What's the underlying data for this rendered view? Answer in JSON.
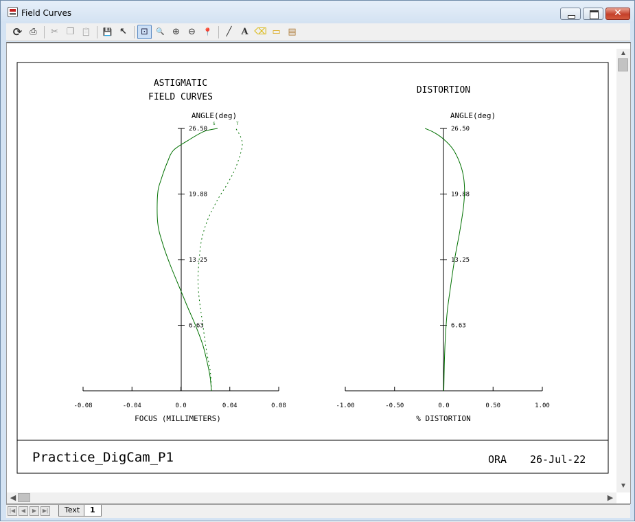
{
  "window": {
    "title": "Field Curves"
  },
  "toolbar": {
    "buttons": [
      {
        "name": "refresh-icon",
        "glyph": "⟳"
      },
      {
        "name": "print-icon",
        "glyph": "⎙"
      },
      {
        "name": "cut-icon",
        "glyph": "✂"
      },
      {
        "name": "copy-icon",
        "glyph": "❐"
      },
      {
        "name": "paste-icon",
        "glyph": "📋"
      },
      {
        "name": "save-icon",
        "glyph": "💾"
      },
      {
        "name": "pointer-icon",
        "glyph": "↖"
      },
      {
        "name": "zoom-window-icon",
        "glyph": "⊡"
      },
      {
        "name": "zoom-1to1-icon",
        "glyph": "🔍"
      },
      {
        "name": "zoom-in-icon",
        "glyph": "⊕"
      },
      {
        "name": "zoom-out-icon",
        "glyph": "⊖"
      },
      {
        "name": "pin-icon",
        "glyph": "📍"
      },
      {
        "name": "line-tool-icon",
        "glyph": "╱"
      },
      {
        "name": "text-tool-icon",
        "glyph": "A"
      },
      {
        "name": "eraser-icon",
        "glyph": "⌫"
      },
      {
        "name": "ruler-icon",
        "glyph": "▭"
      },
      {
        "name": "properties-icon",
        "glyph": "▤"
      }
    ]
  },
  "astig": {
    "title_line1": "ASTIGMATIC",
    "title_line2": "FIELD CURVES",
    "angle_label": "ANGLE(deg)",
    "xlabel": "FOCUS (MILLIMETERS)",
    "s_marker": "S",
    "t_marker": "T"
  },
  "dist": {
    "title": "DISTORTION",
    "angle_label": "ANGLE(deg)",
    "xlabel": "% DISTORTION"
  },
  "footer": {
    "name": "Practice_DigCam_P1",
    "company": "ORA",
    "date": "26-Jul-22"
  },
  "tabs": [
    {
      "label": "Text",
      "active": false
    },
    {
      "label": "1",
      "active": true
    }
  ],
  "chart_data": [
    {
      "type": "line",
      "title": "ASTIGMATIC FIELD CURVES",
      "xlabel": "FOCUS (MILLIMETERS)",
      "ylabel": "ANGLE(deg)",
      "xlim": [
        -0.08,
        0.08
      ],
      "ylim": [
        0,
        26.5
      ],
      "x_ticks": [
        "-0.08",
        "-0.04",
        "0.0",
        "0.04",
        "0.08"
      ],
      "y_ticks": [
        "6.63",
        "13.25",
        "19.88",
        "26.50"
      ],
      "series": [
        {
          "name": "S",
          "style": "solid",
          "color": "#007000",
          "points": [
            [
              0.025,
              0
            ],
            [
              0.024,
              1.3
            ],
            [
              0.022,
              2.6
            ],
            [
              0.018,
              4.6
            ],
            [
              0.012,
              6.6
            ],
            [
              0.005,
              8.6
            ],
            [
              -0.002,
              10.7
            ],
            [
              -0.009,
              12.8
            ],
            [
              -0.015,
              14.9
            ],
            [
              -0.019,
              17.0
            ],
            [
              -0.019,
              19.9
            ],
            [
              -0.016,
              21.4
            ],
            [
              -0.011,
              23.1
            ],
            [
              -0.006,
              24.3
            ],
            [
              0.006,
              25.3
            ],
            [
              0.019,
              26.2
            ],
            [
              0.03,
              26.5
            ]
          ]
        },
        {
          "name": "T",
          "style": "dotted",
          "color": "#007000",
          "points": [
            [
              0.025,
              0
            ],
            [
              0.024,
              2.0
            ],
            [
              0.021,
              4.0
            ],
            [
              0.018,
              6.6
            ],
            [
              0.015,
              9.3
            ],
            [
              0.014,
              11.3
            ],
            [
              0.015,
              13.3
            ],
            [
              0.017,
              15.3
            ],
            [
              0.022,
              17.3
            ],
            [
              0.03,
              19.3
            ],
            [
              0.038,
              20.9
            ],
            [
              0.045,
              22.6
            ],
            [
              0.05,
              24.6
            ],
            [
              0.049,
              25.6
            ],
            [
              0.045,
              26.5
            ]
          ]
        }
      ]
    },
    {
      "type": "line",
      "title": "DISTORTION",
      "xlabel": "% DISTORTION",
      "ylabel": "ANGLE(deg)",
      "xlim": [
        -1.0,
        1.0
      ],
      "ylim": [
        0,
        26.5
      ],
      "x_ticks": [
        "-1.00",
        "-0.50",
        "0.0",
        "0.50",
        "1.00"
      ],
      "y_ticks": [
        "6.63",
        "13.25",
        "19.88",
        "26.50"
      ],
      "series": [
        {
          "name": "distortion",
          "style": "solid",
          "color": "#007000",
          "points": [
            [
              0,
              0
            ],
            [
              0.005,
              2.6
            ],
            [
              0.015,
              5.3
            ],
            [
              0.035,
              8.0
            ],
            [
              0.07,
              10.6
            ],
            [
              0.11,
              13.3
            ],
            [
              0.16,
              16.0
            ],
            [
              0.2,
              18.6
            ],
            [
              0.21,
              20.6
            ],
            [
              0.18,
              22.5
            ],
            [
              0.1,
              24.3
            ],
            [
              0.0,
              25.4
            ],
            [
              -0.1,
              26.1
            ],
            [
              -0.19,
              26.5
            ]
          ]
        }
      ]
    }
  ]
}
